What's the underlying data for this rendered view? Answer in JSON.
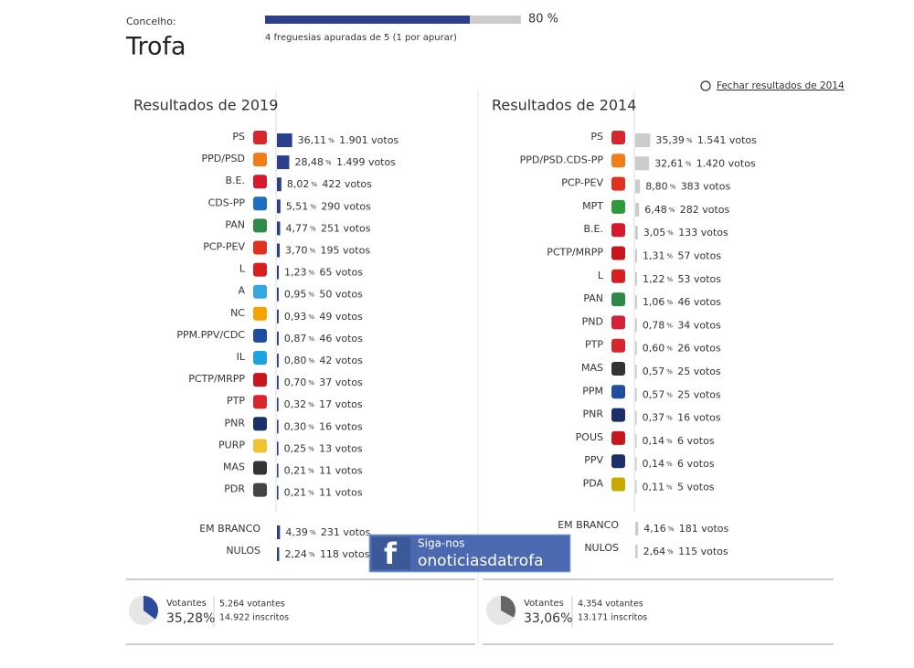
{
  "header": {
    "label": "Concelho:",
    "title": "Trofa",
    "progress": 80,
    "progress_label": "80 %",
    "progress_note": "4 freguesias apuradas de 5 (1 por apurar)"
  },
  "close_link": "Fechar resultados de 2014",
  "percent_sign": "%",
  "panels": [
    {
      "title": "Resultados de 2019",
      "bar_color": "#2b3f8c",
      "pie_color": "#2b4a9c",
      "parties": [
        {
          "name": "PS",
          "pct": 36.11,
          "pct_label": "36,11",
          "votes": "1.901 votos",
          "logo": "#d9262c"
        },
        {
          "name": "PPD/PSD",
          "pct": 28.48,
          "pct_label": "28,48",
          "votes": "1.499 votos",
          "logo": "#f07c1a"
        },
        {
          "name": "B.E.",
          "pct": 8.02,
          "pct_label": "8,02",
          "votes": "422 votos",
          "logo": "#d7192d"
        },
        {
          "name": "CDS-PP",
          "pct": 5.51,
          "pct_label": "5,51",
          "votes": "290 votos",
          "logo": "#1f6fc0"
        },
        {
          "name": "PAN",
          "pct": 4.77,
          "pct_label": "4,77",
          "votes": "251 votos",
          "logo": "#2f8a4a"
        },
        {
          "name": "PCP-PEV",
          "pct": 3.7,
          "pct_label": "3,70",
          "votes": "195 votos",
          "logo": "#e0301e"
        },
        {
          "name": "L",
          "pct": 1.23,
          "pct_label": "1,23",
          "votes": "65 votos",
          "logo": "#d6201f"
        },
        {
          "name": "A",
          "pct": 0.95,
          "pct_label": "0,95",
          "votes": "50 votos",
          "logo": "#33a7e0"
        },
        {
          "name": "NC",
          "pct": 0.93,
          "pct_label": "0,93",
          "votes": "49 votos",
          "logo": "#f2a400"
        },
        {
          "name": "PPM.PPV/CDC",
          "pct": 0.87,
          "pct_label": "0,87",
          "votes": "46 votos",
          "logo": "#1f4f9c"
        },
        {
          "name": "IL",
          "pct": 0.8,
          "pct_label": "0,80",
          "votes": "42 votos",
          "logo": "#1fa3e0"
        },
        {
          "name": "PCTP/MRPP",
          "pct": 0.7,
          "pct_label": "0,70",
          "votes": "37 votos",
          "logo": "#c8161d"
        },
        {
          "name": "PTP",
          "pct": 0.32,
          "pct_label": "0,32",
          "votes": "17 votos",
          "logo": "#d9262c"
        },
        {
          "name": "PNR",
          "pct": 0.3,
          "pct_label": "0,30",
          "votes": "16 votos",
          "logo": "#1b2f6b"
        },
        {
          "name": "PURP",
          "pct": 0.25,
          "pct_label": "0,25",
          "votes": "13 votos",
          "logo": "#f1c232"
        },
        {
          "name": "MAS",
          "pct": 0.21,
          "pct_label": "0,21",
          "votes": "11 votos",
          "logo": "#333333"
        },
        {
          "name": "PDR",
          "pct": 0.21,
          "pct_label": "0,21",
          "votes": "11 votos",
          "logo": "#444444"
        }
      ],
      "extra": [
        {
          "name": "EM BRANCO",
          "pct": 4.39,
          "pct_label": "4,39",
          "votes": "231 votos"
        },
        {
          "name": "NULOS",
          "pct": 2.24,
          "pct_label": "2,24",
          "votes": "118 votos"
        }
      ],
      "turnout": {
        "label": "Votantes",
        "pct": 35.28,
        "pct_label": "35,28%",
        "voters": "5.264 votantes",
        "registered": "14.922 inscritos"
      }
    },
    {
      "title": "Resultados de 2014",
      "bar_color": "#cccccc",
      "pie_color": "#666666",
      "parties": [
        {
          "name": "PS",
          "pct": 35.39,
          "pct_label": "35,39",
          "votes": "1.541 votos",
          "logo": "#d9262c"
        },
        {
          "name": "PPD/PSD.CDS-PP",
          "pct": 32.61,
          "pct_label": "32,61",
          "votes": "1.420 votos",
          "logo": "#f07c1a"
        },
        {
          "name": "PCP-PEV",
          "pct": 8.8,
          "pct_label": "8,80",
          "votes": "383 votos",
          "logo": "#e0301e"
        },
        {
          "name": "MPT",
          "pct": 6.48,
          "pct_label": "6,48",
          "votes": "282 votos",
          "logo": "#2f9a3a"
        },
        {
          "name": "B.E.",
          "pct": 3.05,
          "pct_label": "3,05",
          "votes": "133 votos",
          "logo": "#d7192d"
        },
        {
          "name": "PCTP/MRPP",
          "pct": 1.31,
          "pct_label": "1,31",
          "votes": "57 votos",
          "logo": "#c8161d"
        },
        {
          "name": "L",
          "pct": 1.22,
          "pct_label": "1,22",
          "votes": "53 votos",
          "logo": "#d6201f"
        },
        {
          "name": "PAN",
          "pct": 1.06,
          "pct_label": "1,06",
          "votes": "46 votos",
          "logo": "#2f8a4a"
        },
        {
          "name": "PND",
          "pct": 0.78,
          "pct_label": "0,78",
          "votes": "34 votos",
          "logo": "#d4213a"
        },
        {
          "name": "PTP",
          "pct": 0.6,
          "pct_label": "0,60",
          "votes": "26 votos",
          "logo": "#d9262c"
        },
        {
          "name": "MAS",
          "pct": 0.57,
          "pct_label": "0,57",
          "votes": "25 votos",
          "logo": "#333333"
        },
        {
          "name": "PPM",
          "pct": 0.57,
          "pct_label": "0,57",
          "votes": "25 votos",
          "logo": "#1f4f9c"
        },
        {
          "name": "PNR",
          "pct": 0.37,
          "pct_label": "0,37",
          "votes": "16 votos",
          "logo": "#1b2f6b"
        },
        {
          "name": "POUS",
          "pct": 0.14,
          "pct_label": "0,14",
          "votes": "6 votos",
          "logo": "#c8161d"
        },
        {
          "name": "PPV",
          "pct": 0.14,
          "pct_label": "0,14",
          "votes": "6 votos",
          "logo": "#1b2f6b"
        },
        {
          "name": "PDA",
          "pct": 0.11,
          "pct_label": "0,11",
          "votes": "5 votos",
          "logo": "#c9a800"
        }
      ],
      "extra": [
        {
          "name": "EM BRANCO",
          "pct": 4.16,
          "pct_label": "4,16",
          "votes": "181 votos"
        },
        {
          "name": "NULOS",
          "pct": 2.64,
          "pct_label": "2,64",
          "votes": "115 votos"
        }
      ],
      "turnout": {
        "label": "Votantes",
        "pct": 33.06,
        "pct_label": "33,06%",
        "voters": "4.354 votantes",
        "registered": "13.171 inscritos"
      }
    }
  ],
  "banner": {
    "line1": "Siga-nos",
    "line2": "onoticiasdatrofa"
  }
}
